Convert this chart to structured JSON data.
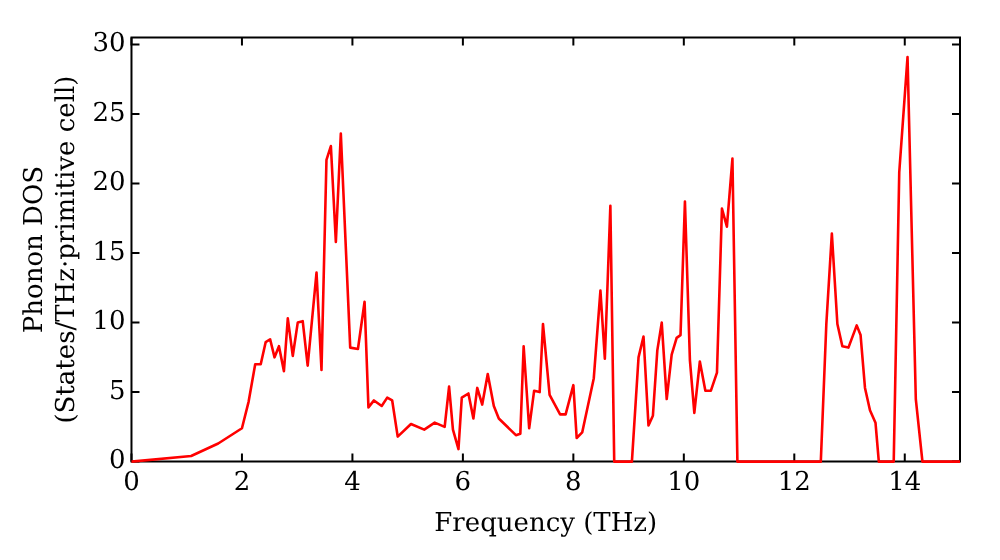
{
  "chart_data": {
    "type": "line",
    "xlabel": "Frequency (THz)",
    "ylabel": "Phonon DOS\n(States/THz·primitive cell)",
    "x": [
      0,
      1.08,
      1.57,
      2.0,
      2.12,
      2.24,
      2.34,
      2.43,
      2.51,
      2.59,
      2.67,
      2.76,
      2.83,
      2.92,
      3.01,
      3.1,
      3.19,
      3.35,
      3.44,
      3.53,
      3.61,
      3.7,
      3.79,
      3.96,
      4.1,
      4.22,
      4.29,
      4.39,
      4.53,
      4.63,
      4.72,
      4.82,
      5.06,
      5.3,
      5.49,
      5.67,
      5.75,
      5.82,
      5.92,
      5.98,
      6.1,
      6.19,
      6.26,
      6.35,
      6.45,
      6.56,
      6.65,
      6.96,
      7.04,
      7.1,
      7.2,
      7.29,
      7.39,
      7.45,
      7.57,
      7.76,
      7.86,
      8.0,
      8.06,
      8.16,
      8.37,
      8.49,
      8.57,
      8.67,
      8.74,
      9.06,
      9.18,
      9.27,
      9.36,
      9.44,
      9.52,
      9.6,
      9.69,
      9.78,
      9.87,
      9.94,
      10.02,
      10.11,
      10.19,
      10.29,
      10.39,
      10.49,
      10.6,
      10.69,
      10.78,
      10.88,
      10.97,
      12.48,
      12.58,
      12.68,
      12.78,
      12.87,
      12.98,
      13.13,
      13.2,
      13.28,
      13.37,
      13.47,
      13.53,
      13.8,
      13.9,
      14.05,
      14.2,
      14.32,
      15
    ],
    "series": [
      {
        "color": "#ff0000",
        "values": [
          0,
          0.4,
          1.3,
          2.4,
          4.3,
          7.0,
          7.0,
          8.6,
          8.8,
          7.5,
          8.3,
          6.5,
          10.3,
          7.6,
          10.0,
          10.1,
          6.9,
          13.6,
          6.6,
          21.7,
          22.7,
          15.8,
          23.6,
          8.2,
          8.1,
          11.5,
          3.9,
          4.4,
          4.0,
          4.6,
          4.4,
          1.8,
          2.7,
          2.3,
          2.8,
          2.5,
          5.4,
          2.3,
          0.9,
          4.6,
          4.9,
          3.1,
          5.3,
          4.1,
          6.3,
          4.0,
          3.1,
          1.9,
          2.0,
          8.3,
          2.4,
          5.1,
          5.0,
          9.9,
          4.8,
          3.4,
          3.4,
          5.5,
          1.7,
          2.1,
          6.0,
          12.3,
          7.4,
          18.4,
          0,
          0,
          7.5,
          9.0,
          2.6,
          3.3,
          8.0,
          10.0,
          4.5,
          7.7,
          8.9,
          9.1,
          18.7,
          7.3,
          3.5,
          7.2,
          5.1,
          5.1,
          6.4,
          18.2,
          16.9,
          21.8,
          0,
          0,
          9.9,
          16.4,
          9.9,
          8.3,
          8.2,
          9.8,
          9.1,
          5.3,
          3.7,
          2.8,
          0,
          0,
          20.8,
          29.1,
          4.5,
          0,
          0
        ]
      }
    ],
    "xlim": [
      0,
      15
    ],
    "xticks": [
      0,
      2,
      4,
      6,
      8,
      10,
      12,
      14
    ],
    "ylim": [
      0,
      30.5
    ],
    "yticks": [
      0,
      5,
      10,
      15,
      20,
      25,
      30
    ],
    "grid": false,
    "legend": false,
    "marker": "none",
    "line_style": "solid"
  }
}
